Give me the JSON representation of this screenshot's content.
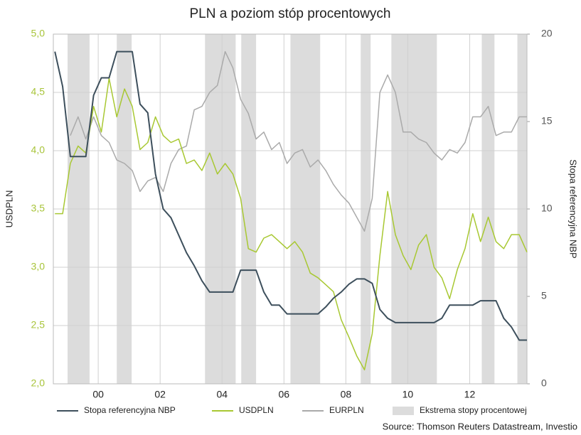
{
  "chart_data": {
    "type": "line",
    "title": "PLN a poziom stóp procentowych",
    "y_label": "USDPLN",
    "y2_label": "Stopa referencyjna NBP",
    "source": "Source: Thomson Reuters Datastream, Investio",
    "xlim": [
      1998.55,
      2013.85
    ],
    "xticks": [
      {
        "value": 2000,
        "label": "00"
      },
      {
        "value": 2002,
        "label": "02"
      },
      {
        "value": 2004,
        "label": "04"
      },
      {
        "value": 2006,
        "label": "06"
      },
      {
        "value": 2008,
        "label": "08"
      },
      {
        "value": 2010,
        "label": "10"
      },
      {
        "value": 2012,
        "label": "12"
      }
    ],
    "ylim": [
      2,
      5
    ],
    "yticks": [
      {
        "value": 2,
        "label": "2,0"
      },
      {
        "value": 2.5,
        "label": "2,5"
      },
      {
        "value": 3,
        "label": "3,0"
      },
      {
        "value": 3.5,
        "label": "3,5"
      },
      {
        "value": 4,
        "label": "4,0"
      },
      {
        "value": 4.5,
        "label": "4,5"
      },
      {
        "value": 5,
        "label": "5,0"
      }
    ],
    "y2lim": [
      0,
      20
    ],
    "y2ticks": [
      0,
      5,
      10,
      15,
      20
    ],
    "grid": true,
    "legend": "bottom",
    "bands": {
      "name": "Ekstrema stopy procentowej",
      "color": "#dcdcdc",
      "ranges": [
        [
          1999.01,
          1999.72
        ],
        [
          2000.6,
          2001.08
        ],
        [
          2003.45,
          2004.44
        ],
        [
          2004.62,
          2005.1
        ],
        [
          2006.21,
          2007.17
        ],
        [
          2008.48,
          2008.8
        ],
        [
          2009.47,
          2010.94
        ],
        [
          2012.39,
          2012.8
        ],
        [
          2013.54,
          2013.85
        ]
      ]
    },
    "x": [
      1998.6,
      1998.85,
      1999.1,
      1999.35,
      1999.6,
      1999.85,
      2000.1,
      2000.35,
      2000.6,
      2000.85,
      2001.1,
      2001.35,
      2001.6,
      2001.85,
      2002.1,
      2002.35,
      2002.6,
      2002.85,
      2003.1,
      2003.35,
      2003.6,
      2003.85,
      2004.1,
      2004.35,
      2004.6,
      2004.85,
      2005.1,
      2005.35,
      2005.6,
      2005.85,
      2006.1,
      2006.35,
      2006.6,
      2006.85,
      2007.1,
      2007.35,
      2007.6,
      2007.85,
      2008.1,
      2008.35,
      2008.6,
      2008.85,
      2009.1,
      2009.35,
      2009.6,
      2009.85,
      2010.1,
      2010.35,
      2010.6,
      2010.85,
      2011.1,
      2011.35,
      2011.6,
      2011.85,
      2012.1,
      2012.35,
      2012.6,
      2012.85,
      2013.1,
      2013.35,
      2013.6,
      2013.85
    ],
    "series": [
      {
        "name": "Stopa referencyjna NBP",
        "color": "#3d4f5c",
        "axis": "y2",
        "values": [
          19,
          17,
          13,
          13,
          13,
          16.5,
          17.5,
          17.5,
          19,
          19,
          19,
          16,
          15.5,
          12,
          10,
          9.5,
          8.5,
          7.5,
          6.75,
          5.9,
          5.25,
          5.25,
          5.25,
          5.25,
          6.5,
          6.5,
          6.5,
          5.25,
          4.5,
          4.5,
          4,
          4,
          4,
          4,
          4,
          4.4,
          4.9,
          5.25,
          5.7,
          6,
          6,
          5.75,
          4.25,
          3.75,
          3.5,
          3.5,
          3.5,
          3.5,
          3.5,
          3.5,
          3.75,
          4.5,
          4.5,
          4.5,
          4.5,
          4.75,
          4.75,
          4.75,
          3.75,
          3.25,
          2.5,
          2.5
        ]
      },
      {
        "name": "USDPLN",
        "color": "#a8c832",
        "values": [
          3.46,
          3.46,
          3.89,
          4.04,
          3.98,
          4.38,
          4.16,
          4.62,
          4.29,
          4.53,
          4.38,
          4.01,
          4.07,
          4.29,
          4.13,
          4.07,
          4.1,
          3.89,
          3.92,
          3.83,
          3.98,
          3.8,
          3.89,
          3.8,
          3.59,
          3.16,
          3.13,
          3.25,
          3.28,
          3.22,
          3.16,
          3.22,
          3.13,
          2.95,
          2.91,
          2.85,
          2.79,
          2.55,
          2.4,
          2.24,
          2.12,
          2.43,
          3.1,
          3.65,
          3.28,
          3.1,
          2.98,
          3.19,
          3.28,
          3.0,
          2.91,
          2.73,
          2.98,
          3.16,
          3.46,
          3.22,
          3.43,
          3.22,
          3.16,
          3.28,
          3.28,
          3.13
        ]
      },
      {
        "name": "EURPLN",
        "color": "#aaaaaa",
        "values": [
          null,
          null,
          4.13,
          4.29,
          4.1,
          4.29,
          4.13,
          4.07,
          3.92,
          3.89,
          3.83,
          3.65,
          3.74,
          3.77,
          3.65,
          3.89,
          4.01,
          4.04,
          4.35,
          4.38,
          4.5,
          4.56,
          4.85,
          4.71,
          4.44,
          4.32,
          4.1,
          4.16,
          4.01,
          4.07,
          3.89,
          3.98,
          4.01,
          3.86,
          3.92,
          3.83,
          3.71,
          3.62,
          3.55,
          3.43,
          3.31,
          3.59,
          4.5,
          4.65,
          4.5,
          4.16,
          4.16,
          4.1,
          4.07,
          3.98,
          3.92,
          4.01,
          3.98,
          4.07,
          4.29,
          4.29,
          4.38,
          4.13,
          4.16,
          4.16,
          4.29,
          4.29
        ]
      }
    ]
  }
}
